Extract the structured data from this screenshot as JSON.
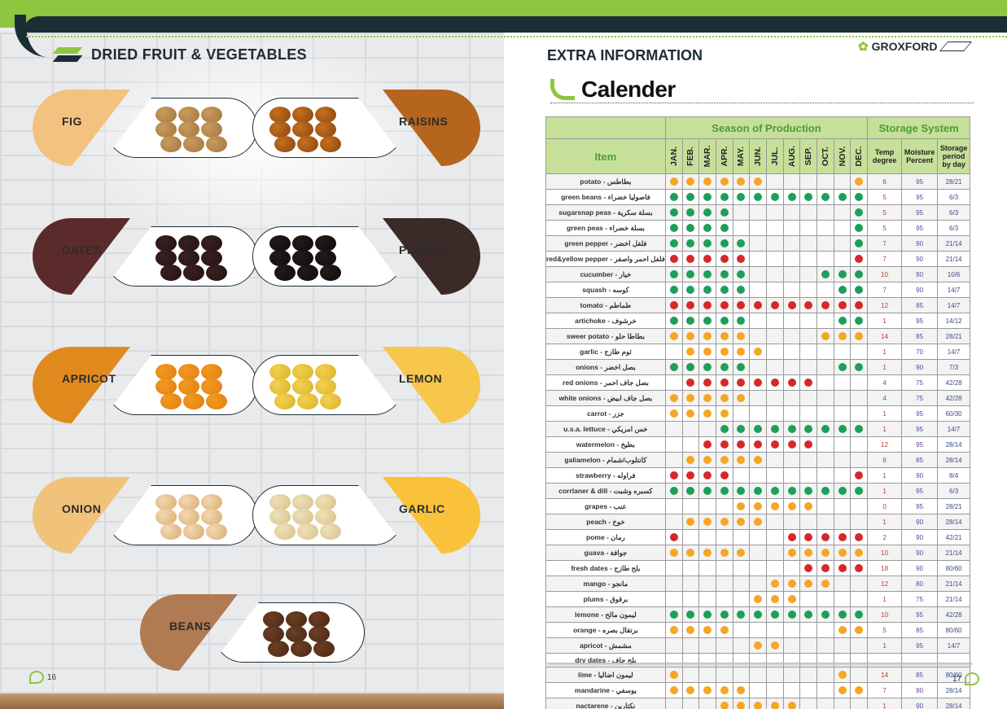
{
  "left_page": {
    "title": "DRIED FRUIT & VEGETABLES",
    "page_number": "16",
    "items": [
      {
        "label": "FIG",
        "color": "#f2c27e"
      },
      {
        "label": "RAISINS",
        "color": "#b5651d"
      },
      {
        "label": "DATES",
        "color": "#5b2b2b"
      },
      {
        "label": "PRUNES",
        "color": "#3a2a28"
      },
      {
        "label": "APRICOT",
        "color": "#e08a1e"
      },
      {
        "label": "LEMON",
        "color": "#f6c74a"
      },
      {
        "label": "ONION",
        "color": "#f1c27a"
      },
      {
        "label": "GARLIC",
        "color": "#f9c23a"
      },
      {
        "label": "BEANS",
        "color": "#b07a52"
      }
    ]
  },
  "right_page": {
    "brand": "GROXFORD",
    "section_title": "EXTRA INFORMATION",
    "calendar_title": "Calender",
    "page_number": "17",
    "table": {
      "season_header": "Season of Production",
      "storage_header": "Storage System",
      "item_header": "Item",
      "months": [
        "JAN.",
        "FEB.",
        "MAR.",
        "APR.",
        "MAY.",
        "JUN.",
        "JUL.",
        "AUG.",
        "SEP.",
        "OCT.",
        "NOV.",
        "DEC."
      ],
      "storage_cols": [
        "Temp degree",
        "Moisture Percent",
        "Storage period by day"
      ],
      "dot_colors": {
        "o": "#f5a623",
        "g": "#1e9e5a",
        "r": "#d62828"
      },
      "rows": [
        {
          "name": "potato - بطاطس",
          "m": "oooooo.....o",
          "t": "6",
          "h": "95",
          "s": "28/21"
        },
        {
          "name": "green beans - فاصوليا خضراء",
          "m": "gggggggggggg",
          "t": "5",
          "h": "95",
          "s": "6/3"
        },
        {
          "name": "sugarsnap peas - بسلة سكرية",
          "m": "gggg.......g",
          "t": "5",
          "h": "95",
          "s": "6/3"
        },
        {
          "name": "green peas - بسلة خضراء",
          "m": "gggg.......g",
          "t": "5",
          "h": "95",
          "s": "6/3"
        },
        {
          "name": "green pepper - فلفل اخضر",
          "m": "ggggg......g",
          "t": "7",
          "h": "90",
          "s": "21/14"
        },
        {
          "name": "red&yellow pepper - فلفل احمر واصفر",
          "m": "rrrrr......r",
          "t": "7",
          "h": "90",
          "s": "21/14"
        },
        {
          "name": "cucumber - خيار",
          "m": "ggggg....ggg",
          "t": "10",
          "h": "90",
          "s": "10/6"
        },
        {
          "name": "squash - كوسه",
          "m": "ggggg.....gg",
          "t": "7",
          "h": "90",
          "s": "14/7"
        },
        {
          "name": "tomato - طماطم",
          "m": "rrrrrrrrrrrr",
          "t": "12",
          "h": "85",
          "s": "14/7"
        },
        {
          "name": "artichoke - خرشوف",
          "m": "ggggg.....gg",
          "t": "1",
          "h": "95",
          "s": "14/12"
        },
        {
          "name": "sweer potato - بطاطا حلو",
          "m": "ooooo....ooo",
          "t": "14",
          "h": "85",
          "s": "28/21"
        },
        {
          "name": "garlic - ثوم طازج",
          "m": ".ooooo......",
          "t": "1",
          "h": "70",
          "s": "14/7"
        },
        {
          "name": "onions - بصل اخضر",
          "m": "ggggg.....gg",
          "t": "1",
          "h": "90",
          "s": "7/3"
        },
        {
          "name": "red onions - بصل جاف احمر",
          "m": ".rrrrrrrr...",
          "t": "4",
          "h": "75",
          "s": "42/28"
        },
        {
          "name": "white onions - بصل جاف ابيض",
          "m": "ooooo.......",
          "t": "4",
          "h": "75",
          "s": "42/28"
        },
        {
          "name": "carrot - جزر",
          "m": "oooo........",
          "t": "1",
          "h": "95",
          "s": "60/30"
        },
        {
          "name": "u.s.a. lettuce - خس امريكي",
          "m": "...ggggggggg",
          "t": "1",
          "h": "95",
          "s": "14/7"
        },
        {
          "name": "watermelon - بطيخ",
          "m": "..rrrrrrr...",
          "t": "12",
          "h": "95",
          "s": "28/14"
        },
        {
          "name": "galiamelon - كانتلوب/شمام",
          "m": ".ooooo......",
          "t": "6",
          "h": "85",
          "s": "28/14"
        },
        {
          "name": "strawberry - فراوله",
          "m": "rrrr.......r",
          "t": "1",
          "h": "90",
          "s": "8/4"
        },
        {
          "name": "corrlaner & dill - كسبره وشبت",
          "m": "gggggggggggg",
          "t": "1",
          "h": "95",
          "s": "6/3"
        },
        {
          "name": "grapes - عنب",
          "m": "....ooooo...",
          "t": "0",
          "h": "95",
          "s": "28/21"
        },
        {
          "name": "peach - خوخ",
          "m": ".ooooo......",
          "t": "1",
          "h": "90",
          "s": "28/14"
        },
        {
          "name": "pome - رمان",
          "m": "r......rrrrr",
          "t": "2",
          "h": "90",
          "s": "42/21"
        },
        {
          "name": "guava - جوافة",
          "m": "ooooo..ooooo",
          "t": "10",
          "h": "90",
          "s": "21/14"
        },
        {
          "name": "fresh dates - بلح طازج",
          "m": "........rrrr",
          "t": "18",
          "h": "90",
          "s": "80/60"
        },
        {
          "name": "mango - مانجو",
          "m": "......oooo..",
          "t": "12",
          "h": "80",
          "s": "21/14"
        },
        {
          "name": "plums - برقوق",
          "m": ".....ooo....",
          "t": "1",
          "h": "75",
          "s": "21/14"
        },
        {
          "name": "lemone - ليمون مالح",
          "m": "gggggggggggg",
          "t": "10",
          "h": "95",
          "s": "42/28"
        },
        {
          "name": "orange - برتقال بصره",
          "m": "oooo......oo",
          "t": "5",
          "h": "85",
          "s": "80/60"
        },
        {
          "name": "apricot - مشمش",
          "m": ".....oo.....",
          "t": "1",
          "h": "95",
          "s": "14/7"
        },
        {
          "name": "dry dates - بلح جاف",
          "m": "............",
          "t": "",
          "h": "",
          "s": ""
        },
        {
          "name": "lime - ليمون اضاليا",
          "m": "o.........o.",
          "t": "14",
          "h": "85",
          "s": "80/60"
        },
        {
          "name": "mandarine - يوسفي",
          "m": "ooooo.....oo",
          "t": "7",
          "h": "90",
          "s": "28/14"
        },
        {
          "name": "nactarene - نكتارين",
          "m": "...ooooo....",
          "t": "1",
          "h": "90",
          "s": "28/14"
        }
      ]
    }
  }
}
